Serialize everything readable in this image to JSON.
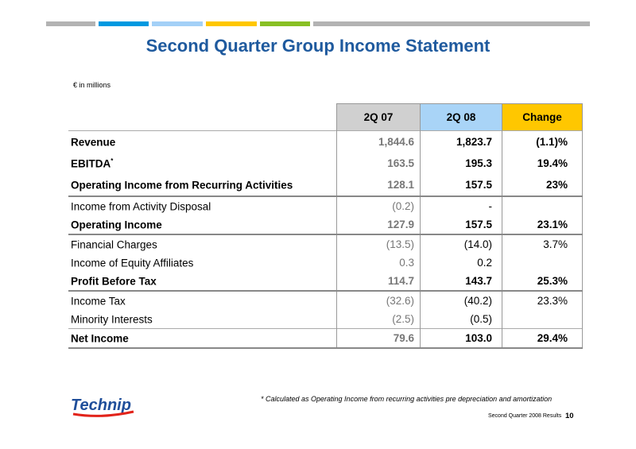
{
  "colors": {
    "title": "#1f5a9e",
    "bar": [
      "#b3b3b3",
      "#0099e0",
      "#a3d0f7",
      "#ffc700",
      "#88c024",
      "#b3b3b3"
    ],
    "header_2q07": "#d0d0d0",
    "header_2q08": "#a9d4f7",
    "header_change": "#ffc700"
  },
  "title": "Second Quarter Group Income Statement",
  "units": "€ in millions",
  "columns": [
    "2Q 07",
    "2Q 08",
    "Change"
  ],
  "rows": [
    {
      "label": "Revenue",
      "sup": "",
      "q07": "1,844.6",
      "q08": "1,823.7",
      "change": "(1.1)%"
    },
    {
      "label": "EBITDA",
      "sup": "*",
      "q07": "163.5",
      "q08": "195.3",
      "change": "19.4%"
    },
    {
      "label": "Operating Income from Recurring Activities",
      "sup": "",
      "q07": "128.1",
      "q08": "157.5",
      "change": "23%"
    },
    {
      "label": "Income from Activity Disposal",
      "sup": "",
      "q07": "(0.2)",
      "q08": "-",
      "change": ""
    },
    {
      "label": "Operating Income",
      "sup": "",
      "q07": "127.9",
      "q08": "157.5",
      "change": "23.1%"
    },
    {
      "label": "Financial Charges",
      "sup": "",
      "q07": "(13.5)",
      "q08": "(14.0)",
      "change": "3.7%"
    },
    {
      "label": "Income of Equity Affiliates",
      "sup": "",
      "q07": "0.3",
      "q08": "0.2",
      "change": ""
    },
    {
      "label": "Profit Before Tax",
      "sup": "",
      "q07": "114.7",
      "q08": "143.7",
      "change": "25.3%"
    },
    {
      "label": "Income Tax",
      "sup": "",
      "q07": "(32.6)",
      "q08": "(40.2)",
      "change": "23.3%"
    },
    {
      "label": "Minority Interests",
      "sup": "",
      "q07": "(2.5)",
      "q08": "(0.5)",
      "change": ""
    },
    {
      "label": "Net Income",
      "sup": "",
      "q07": "79.6",
      "q08": "103.0",
      "change": "29.4%"
    }
  ],
  "logo_text": "Technip",
  "footnote": "* Calculated as Operating Income from recurring activities pre depreciation and amortization",
  "footer": "Second Quarter 2008 Results",
  "page_number": "10"
}
